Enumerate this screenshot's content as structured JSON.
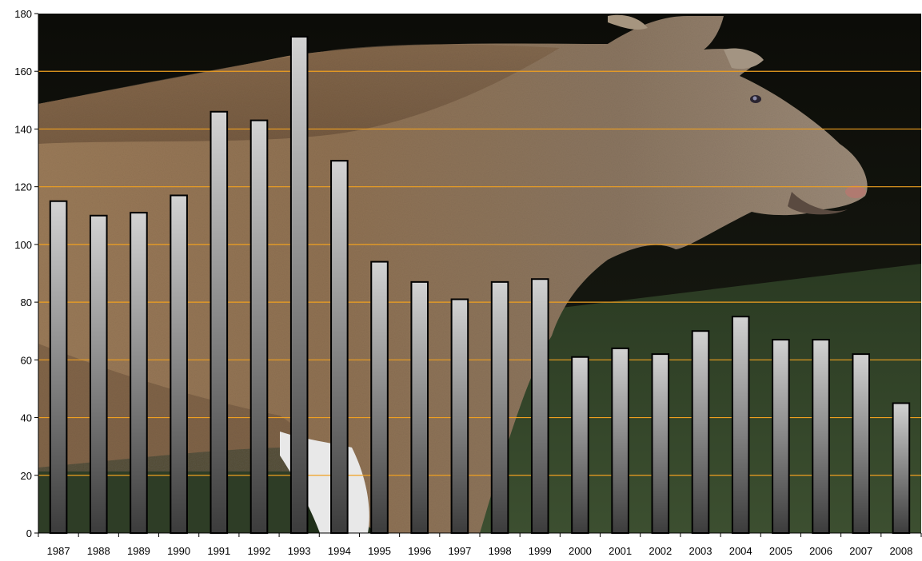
{
  "chart_data": {
    "type": "bar",
    "categories": [
      "1987",
      "1988",
      "1989",
      "1990",
      "1991",
      "1992",
      "1993",
      "1994",
      "1995",
      "1996",
      "1997",
      "1998",
      "1999",
      "2000",
      "2001",
      "2002",
      "2003",
      "2004",
      "2005",
      "2006",
      "2007",
      "2008"
    ],
    "values": [
      115,
      110,
      111,
      117,
      146,
      143,
      172,
      129,
      94,
      87,
      81,
      87,
      88,
      61,
      64,
      62,
      70,
      75,
      67,
      67,
      62,
      45
    ],
    "title": "",
    "xlabel": "",
    "ylabel": "",
    "ylim": [
      0,
      180
    ],
    "yticks": [
      0,
      20,
      40,
      60,
      80,
      100,
      120,
      140,
      160,
      180
    ],
    "grid": true,
    "gridline_color": "#f0a020",
    "bar_fill": "grey-gradient",
    "background_image": "moose-photo"
  }
}
